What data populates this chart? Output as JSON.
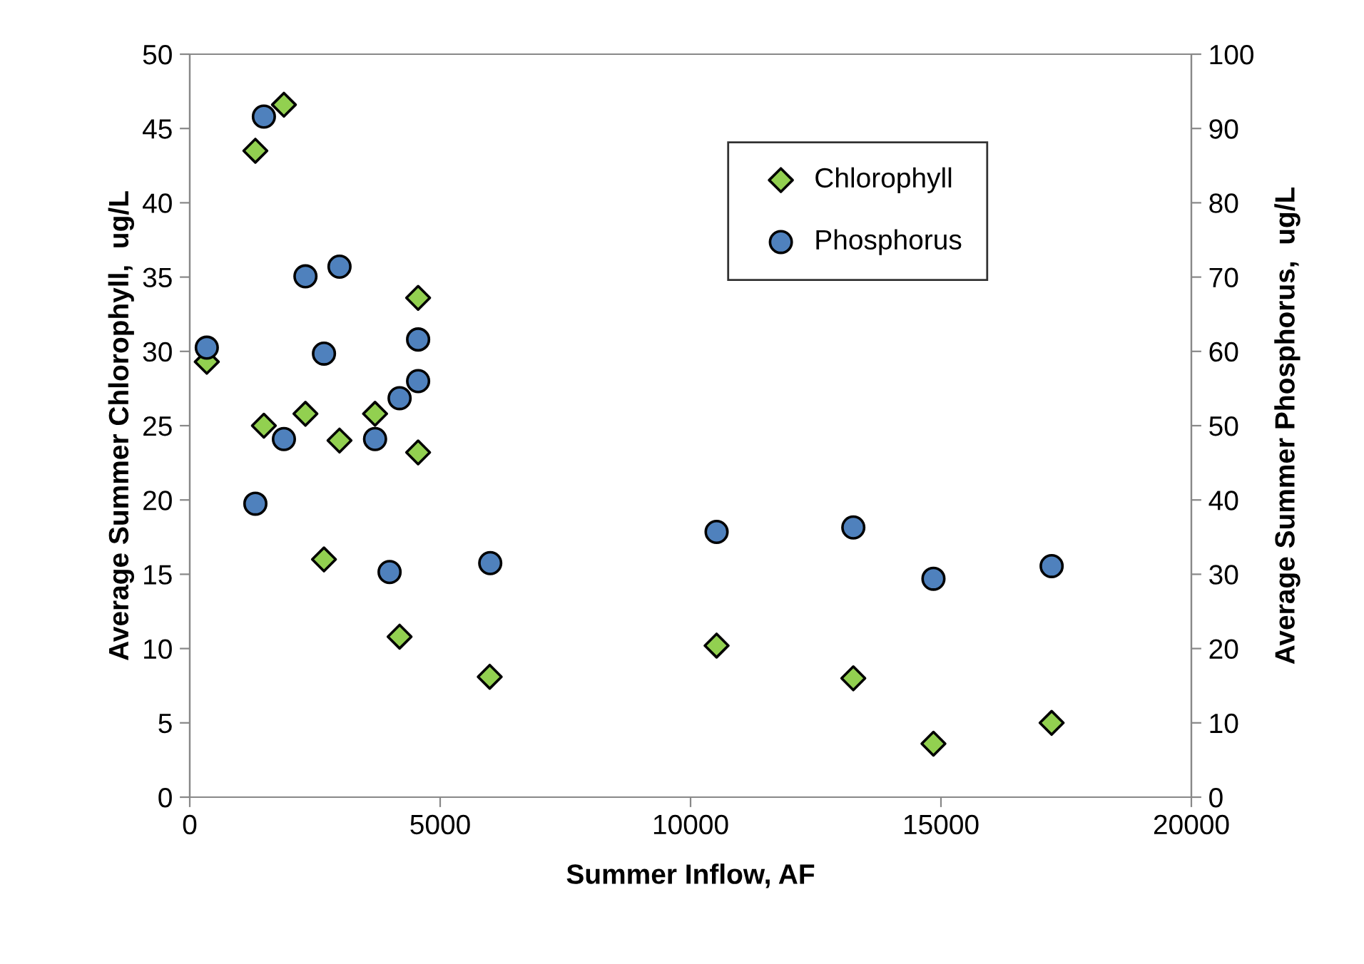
{
  "chart_data": {
    "type": "scatter",
    "xlabel": "Summer Inflow, AF",
    "ylabel": "Average Summer Chlorophyll,  ug/L",
    "y2label": "Average Summer Phosphorus,  ug/L",
    "xlim": [
      0,
      20000
    ],
    "xticks": [
      0,
      5000,
      10000,
      15000,
      20000
    ],
    "ylim": [
      0,
      50
    ],
    "yticks": [
      0,
      5,
      10,
      15,
      20,
      25,
      30,
      35,
      40,
      45,
      50
    ],
    "y2lim": [
      0,
      100
    ],
    "y2ticks": [
      0,
      10,
      20,
      30,
      40,
      50,
      60,
      70,
      80,
      90,
      100
    ],
    "grid": false,
    "legend": "top right",
    "series": [
      {
        "name": "Chlorophyll",
        "color": "#92d050",
        "marker": "diamond",
        "x": [
          340,
          1310,
          1880,
          1480,
          2310,
          2990,
          2680,
          3700,
          4560,
          4560,
          4190,
          5990,
          10520,
          13250,
          14850,
          17210
        ],
        "values": [
          29.3,
          43.5,
          46.6,
          25.0,
          25.8,
          24.0,
          16.0,
          25.8,
          23.2,
          33.6,
          10.8,
          8.1,
          10.2,
          8.0,
          3.6,
          5.0
        ]
      },
      {
        "name": "Phosphorus",
        "color": "#4f81bd",
        "marker": "circle",
        "axis": "y2",
        "x": [
          340,
          1480,
          1310,
          1880,
          2310,
          2990,
          2680,
          3700,
          4190,
          3990,
          4560,
          4560,
          6000,
          10520,
          13250,
          14850,
          17210
        ],
        "values": [
          60.5,
          91.6,
          39.5,
          48.2,
          70.1,
          71.4,
          59.7,
          48.2,
          53.7,
          30.3,
          61.6,
          56.0,
          31.5,
          35.7,
          36.3,
          29.4,
          31.1
        ]
      }
    ]
  }
}
